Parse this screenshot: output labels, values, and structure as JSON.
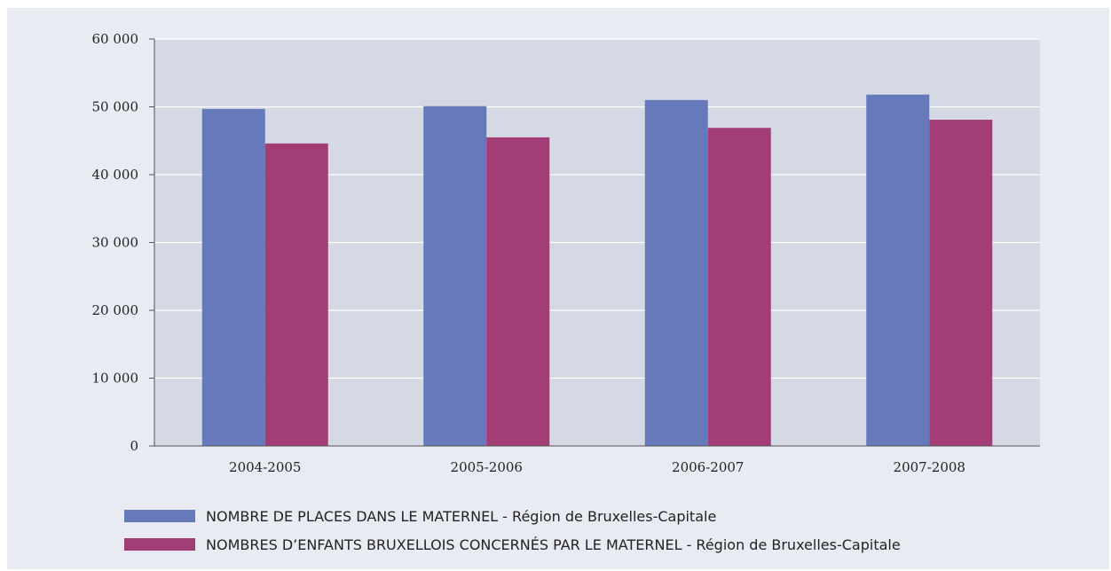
{
  "chart_data": {
    "type": "bar",
    "categories": [
      "2004-2005",
      "2005-2006",
      "2006-2007",
      "2007-2008"
    ],
    "series": [
      {
        "name": "NOMBRE DE PLACES DANS LE MATERNEL - Région de Bruxelles-Capitale",
        "color": "#6579bb",
        "values": [
          49700,
          50100,
          51000,
          51800
        ]
      },
      {
        "name": "NOMBRES D’ENFANTS BRUXELLOIS CONCERNÉS PAR LE MATERNEL - Région de Bruxelles-Capitale",
        "color": "#a33d75",
        "values": [
          44600,
          45500,
          46900,
          48100
        ]
      }
    ],
    "ylim": [
      0,
      60000
    ],
    "yticks": [
      0,
      10000,
      20000,
      30000,
      40000,
      50000,
      60000
    ],
    "ytick_labels": [
      "0",
      "10 000",
      "20 000",
      "30 000",
      "40 000",
      "50 000",
      "60 000"
    ],
    "grid": true,
    "plot_background": "#d5d9e4",
    "figure_background": "#e8ebf2",
    "legend_position": "bottom",
    "title": "",
    "xlabel": "",
    "ylabel": ""
  }
}
